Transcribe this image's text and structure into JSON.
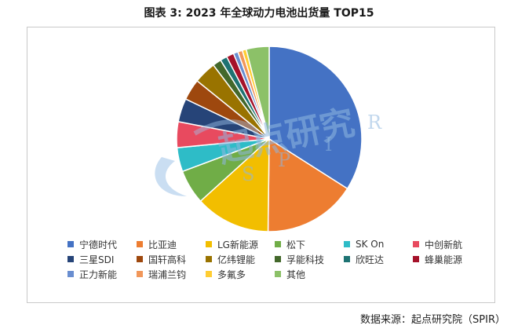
{
  "chart_data": {
    "type": "pie",
    "title": "图表 3: 2023 年全球动力电池出货量 TOP15",
    "categories": [
      "宁德时代",
      "比亚迪",
      "LG新能源",
      "松下",
      "SK On",
      "中创新航",
      "三星SDI",
      "国轩高科",
      "亿纬锂能",
      "孚能科技",
      "欣旺达",
      "蜂巢能源",
      "正力新能",
      "瑞浦兰钧",
      "多氟多",
      "其他"
    ],
    "values": [
      34.0,
      16.2,
      13.1,
      6.0,
      4.2,
      4.5,
      4.1,
      3.7,
      3.9,
      1.5,
      1.2,
      1.3,
      0.8,
      0.8,
      0.7,
      4.0
    ],
    "colors": [
      "#4472C4",
      "#ED7D31",
      "#F2BE00",
      "#70AD47",
      "#2EBCC7",
      "#E84A5F",
      "#264478",
      "#9E480E",
      "#997300",
      "#43682B",
      "#1E7373",
      "#A5122A",
      "#698ED0",
      "#F1975A",
      "#FFCD33",
      "#8CC168"
    ],
    "legend_position": "bottom"
  },
  "source_label": "数据来源：起点研究院（SPIR）",
  "watermark": {
    "text": "起点研究",
    "letters": [
      "S",
      "P",
      "I",
      "R"
    ]
  }
}
